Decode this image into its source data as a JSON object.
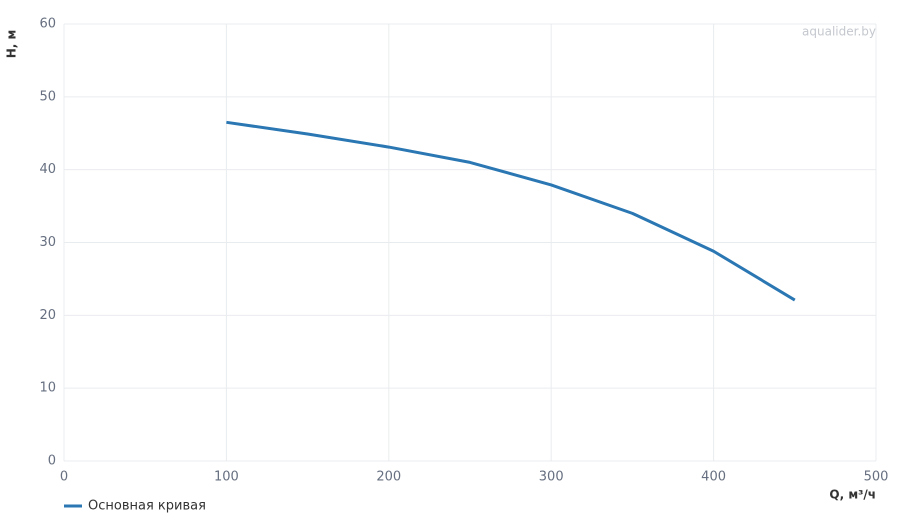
{
  "chart_data": {
    "type": "line",
    "watermark": "aqualider.by",
    "x_label": "Q, м³/ч",
    "y_label": "H, м",
    "x": [
      100,
      150,
      200,
      250,
      300,
      350,
      400,
      450
    ],
    "series": [
      {
        "name": "Основная кривая",
        "color": "#2a77b3",
        "values": [
          46.5,
          44.9,
          43.1,
          41.0,
          37.9,
          34.0,
          28.8,
          22.1
        ]
      }
    ],
    "xlim": [
      0,
      500
    ],
    "xticks": [
      0,
      100,
      200,
      300,
      400,
      500
    ],
    "ylim": [
      0,
      60
    ],
    "yticks": [
      0,
      10,
      20,
      30,
      40,
      50,
      60
    ],
    "grid": true,
    "legend": "bottom-left"
  }
}
